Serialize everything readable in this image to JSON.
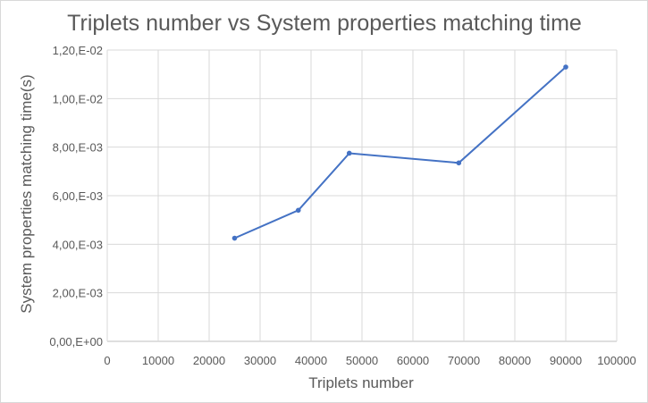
{
  "chart_data": {
    "type": "scatter",
    "title": "Triplets number vs System properties matching time",
    "xlabel": "Triplets number",
    "ylabel": "System properties matching time(s)",
    "xlim": [
      0,
      100000
    ],
    "ylim": [
      0,
      0.012
    ],
    "x_ticks": [
      0,
      10000,
      20000,
      30000,
      40000,
      50000,
      60000,
      70000,
      80000,
      90000,
      100000
    ],
    "x_tick_labels": [
      "0",
      "10000",
      "20000",
      "30000",
      "40000",
      "50000",
      "60000",
      "70000",
      "80000",
      "90000",
      "100000"
    ],
    "y_ticks": [
      0,
      0.002,
      0.004,
      0.006,
      0.008,
      0.01,
      0.012
    ],
    "y_tick_labels": [
      "0,00,E+00",
      "2,00,E-03",
      "4,00,E-03",
      "6,00,E-03",
      "8,00,E-03",
      "1,00,E-02",
      "1,20,E-02"
    ],
    "grid": true,
    "legend": "none",
    "series": [
      {
        "color": "#4472c4",
        "x": [
          25000,
          37500,
          47500,
          69000,
          90000
        ],
        "y": [
          0.00425,
          0.0054,
          0.00775,
          0.00735,
          0.0113
        ]
      }
    ]
  }
}
